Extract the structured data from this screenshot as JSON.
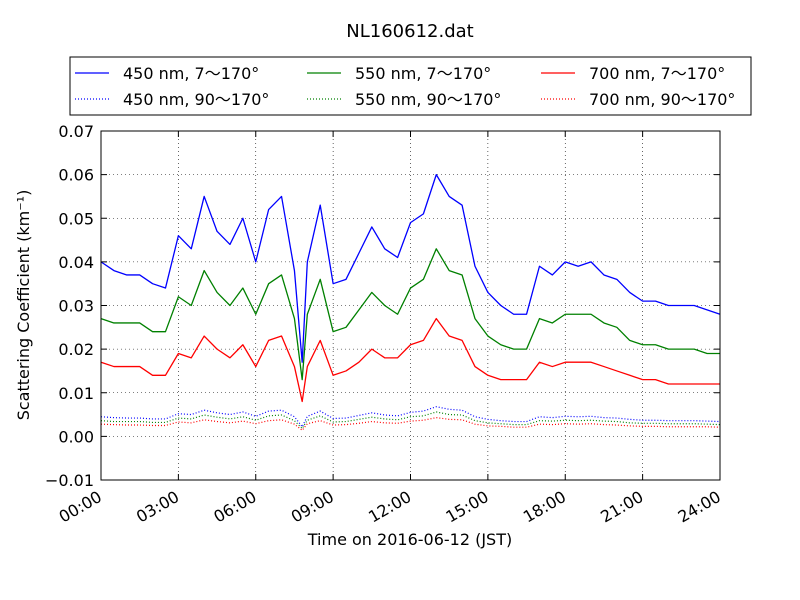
{
  "chart_data": {
    "type": "line",
    "title": "NL160612.dat",
    "xlabel": "Time on 2016-06-12 (JST)",
    "ylabel": "Scattering Coefficient (km⁻¹)",
    "xlim": [
      0,
      24
    ],
    "ylim": [
      -0.01,
      0.07
    ],
    "grid": true,
    "legend_position": "top, above plot, 3 columns",
    "x_ticks": [
      0,
      3,
      6,
      9,
      12,
      15,
      18,
      21,
      24
    ],
    "x_tick_labels": [
      "00:00",
      "03:00",
      "06:00",
      "09:00",
      "12:00",
      "15:00",
      "18:00",
      "21:00",
      "24:00"
    ],
    "y_ticks": [
      -0.01,
      0.0,
      0.01,
      0.02,
      0.03,
      0.04,
      0.05,
      0.06,
      0.07
    ],
    "y_tick_labels": [
      "−0.01",
      "0.00",
      "0.01",
      "0.02",
      "0.03",
      "0.04",
      "0.05",
      "0.06",
      "0.07"
    ],
    "x_unit": "hours since 00:00 JST",
    "x": [
      0.0,
      0.5,
      1.0,
      1.5,
      2.0,
      2.5,
      3.0,
      3.5,
      4.0,
      4.5,
      5.0,
      5.5,
      6.0,
      6.5,
      7.0,
      7.5,
      7.8,
      8.0,
      8.5,
      9.0,
      9.5,
      10.0,
      10.5,
      11.0,
      11.5,
      12.0,
      12.5,
      13.0,
      13.5,
      14.0,
      14.5,
      15.0,
      15.5,
      16.0,
      16.5,
      17.0,
      17.5,
      18.0,
      18.5,
      19.0,
      19.5,
      20.0,
      20.5,
      21.0,
      21.5,
      22.0,
      22.5,
      23.0,
      23.5,
      24.0
    ],
    "series": [
      {
        "name": "450 nm, 7～170°",
        "color": "#0000ff",
        "style": "solid",
        "values": [
          0.04,
          0.038,
          0.037,
          0.037,
          0.035,
          0.034,
          0.046,
          0.043,
          0.055,
          0.047,
          0.044,
          0.05,
          0.04,
          0.052,
          0.055,
          0.038,
          0.017,
          0.04,
          0.053,
          0.035,
          0.036,
          0.042,
          0.048,
          0.043,
          0.041,
          0.049,
          0.051,
          0.06,
          0.055,
          0.053,
          0.039,
          0.033,
          0.03,
          0.028,
          0.028,
          0.039,
          0.037,
          0.04,
          0.039,
          0.04,
          0.037,
          0.036,
          0.033,
          0.031,
          0.031,
          0.03,
          0.03,
          0.03,
          0.029,
          0.028
        ]
      },
      {
        "name": "550 nm, 7～170°",
        "color": "#008000",
        "style": "solid",
        "values": [
          0.027,
          0.026,
          0.026,
          0.026,
          0.024,
          0.024,
          0.032,
          0.03,
          0.038,
          0.033,
          0.03,
          0.034,
          0.028,
          0.035,
          0.037,
          0.027,
          0.013,
          0.028,
          0.036,
          0.024,
          0.025,
          0.029,
          0.033,
          0.03,
          0.028,
          0.034,
          0.036,
          0.043,
          0.038,
          0.037,
          0.027,
          0.023,
          0.021,
          0.02,
          0.02,
          0.027,
          0.026,
          0.028,
          0.028,
          0.028,
          0.026,
          0.025,
          0.022,
          0.021,
          0.021,
          0.02,
          0.02,
          0.02,
          0.019,
          0.019
        ]
      },
      {
        "name": "700 nm, 7～170°",
        "color": "#ff0000",
        "style": "solid",
        "values": [
          0.017,
          0.016,
          0.016,
          0.016,
          0.014,
          0.014,
          0.019,
          0.018,
          0.023,
          0.02,
          0.018,
          0.021,
          0.016,
          0.022,
          0.023,
          0.016,
          0.008,
          0.016,
          0.022,
          0.014,
          0.015,
          0.017,
          0.02,
          0.018,
          0.018,
          0.021,
          0.022,
          0.027,
          0.023,
          0.022,
          0.016,
          0.014,
          0.013,
          0.013,
          0.013,
          0.017,
          0.016,
          0.017,
          0.017,
          0.017,
          0.016,
          0.015,
          0.014,
          0.013,
          0.013,
          0.012,
          0.012,
          0.012,
          0.012,
          0.012
        ]
      },
      {
        "name": "450 nm, 90～170°",
        "color": "#0000ff",
        "style": "dotted",
        "values": [
          0.0045,
          0.0043,
          0.0042,
          0.0042,
          0.004,
          0.004,
          0.0052,
          0.005,
          0.006,
          0.0054,
          0.005,
          0.0056,
          0.0046,
          0.0058,
          0.006,
          0.0045,
          0.0022,
          0.0046,
          0.0058,
          0.0041,
          0.0042,
          0.0048,
          0.0054,
          0.0049,
          0.0047,
          0.0055,
          0.0058,
          0.0068,
          0.0062,
          0.006,
          0.0045,
          0.0039,
          0.0036,
          0.0034,
          0.0034,
          0.0045,
          0.0043,
          0.0046,
          0.0045,
          0.0046,
          0.0043,
          0.0042,
          0.0039,
          0.0037,
          0.0037,
          0.0036,
          0.0036,
          0.0036,
          0.0035,
          0.0034
        ]
      },
      {
        "name": "550 nm, 90～170°",
        "color": "#008000",
        "style": "dotted",
        "values": [
          0.0036,
          0.0034,
          0.0034,
          0.0034,
          0.0032,
          0.0032,
          0.0042,
          0.004,
          0.0049,
          0.0044,
          0.004,
          0.0045,
          0.0037,
          0.0047,
          0.0049,
          0.0036,
          0.0018,
          0.0037,
          0.0047,
          0.0033,
          0.0034,
          0.0039,
          0.0044,
          0.004,
          0.0038,
          0.0045,
          0.0047,
          0.0056,
          0.005,
          0.0049,
          0.0036,
          0.0031,
          0.0029,
          0.0027,
          0.0027,
          0.0036,
          0.0035,
          0.0037,
          0.0036,
          0.0037,
          0.0035,
          0.0034,
          0.0031,
          0.003,
          0.003,
          0.0029,
          0.0029,
          0.0029,
          0.0028,
          0.0027
        ]
      },
      {
        "name": "700 nm, 90～170°",
        "color": "#ff0000",
        "style": "dotted",
        "values": [
          0.0028,
          0.0027,
          0.0026,
          0.0026,
          0.0025,
          0.0025,
          0.0033,
          0.0031,
          0.0038,
          0.0034,
          0.0031,
          0.0035,
          0.0029,
          0.0036,
          0.0038,
          0.0028,
          0.0014,
          0.0029,
          0.0036,
          0.0026,
          0.0027,
          0.003,
          0.0034,
          0.0031,
          0.003,
          0.0035,
          0.0037,
          0.0043,
          0.0039,
          0.0038,
          0.0028,
          0.0024,
          0.0023,
          0.0021,
          0.0021,
          0.0028,
          0.0027,
          0.0029,
          0.0028,
          0.0029,
          0.0027,
          0.0026,
          0.0024,
          0.0023,
          0.0023,
          0.0022,
          0.0022,
          0.0022,
          0.0022,
          0.0021
        ]
      }
    ],
    "legend_order": [
      0,
      1,
      2,
      3,
      4,
      5
    ]
  }
}
